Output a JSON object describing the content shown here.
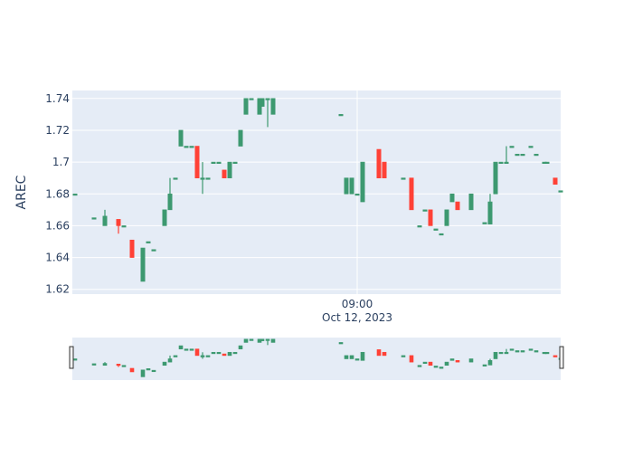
{
  "chart_data": {
    "type": "candlestick",
    "title": "",
    "xlabel": "",
    "ylabel": "AREC",
    "ylim": [
      1.617,
      1.745
    ],
    "y_ticks": [
      "1.62",
      "1.64",
      "1.66",
      "1.68",
      "1.7",
      "1.72",
      "1.74"
    ],
    "x_ticks": [
      {
        "x": 105,
        "line1": "09:00",
        "line2": "Oct 12, 2023"
      }
    ],
    "x_range": [
      0,
      180
    ],
    "grid": true,
    "range_slider": true,
    "colors": {
      "background": "#e5ecf6",
      "grid": "#ffffff",
      "increasing": "#3d9970",
      "decreasing": "#ff4136",
      "text": "#2a3f5f"
    },
    "candles": [
      {
        "x": 1,
        "open": 1.68,
        "high": 1.68,
        "low": 1.68,
        "close": 1.68
      },
      {
        "x": 8,
        "open": 1.665,
        "high": 1.665,
        "low": 1.665,
        "close": 1.665
      },
      {
        "x": 12,
        "open": 1.66,
        "high": 1.67,
        "low": 1.66,
        "close": 1.666
      },
      {
        "x": 17,
        "open": 1.664,
        "high": 1.664,
        "low": 1.655,
        "close": 1.66
      },
      {
        "x": 19,
        "open": 1.66,
        "high": 1.66,
        "low": 1.66,
        "close": 1.66
      },
      {
        "x": 22,
        "open": 1.651,
        "high": 1.651,
        "low": 1.64,
        "close": 1.64
      },
      {
        "x": 26,
        "open": 1.625,
        "high": 1.646,
        "low": 1.625,
        "close": 1.646
      },
      {
        "x": 28,
        "open": 1.65,
        "high": 1.65,
        "low": 1.65,
        "close": 1.65
      },
      {
        "x": 30,
        "open": 1.645,
        "high": 1.645,
        "low": 1.645,
        "close": 1.645
      },
      {
        "x": 34,
        "open": 1.66,
        "high": 1.67,
        "low": 1.66,
        "close": 1.67
      },
      {
        "x": 36,
        "open": 1.67,
        "high": 1.69,
        "low": 1.67,
        "close": 1.68
      },
      {
        "x": 38,
        "open": 1.69,
        "high": 1.69,
        "low": 1.69,
        "close": 1.69
      },
      {
        "x": 40,
        "open": 1.71,
        "high": 1.72,
        "low": 1.71,
        "close": 1.72
      },
      {
        "x": 42,
        "open": 1.71,
        "high": 1.71,
        "low": 1.71,
        "close": 1.71
      },
      {
        "x": 44,
        "open": 1.71,
        "high": 1.71,
        "low": 1.71,
        "close": 1.71
      },
      {
        "x": 46,
        "open": 1.71,
        "high": 1.71,
        "low": 1.69,
        "close": 1.69
      },
      {
        "x": 48,
        "open": 1.69,
        "high": 1.7,
        "low": 1.68,
        "close": 1.69
      },
      {
        "x": 50,
        "open": 1.69,
        "high": 1.69,
        "low": 1.69,
        "close": 1.69
      },
      {
        "x": 52,
        "open": 1.7,
        "high": 1.7,
        "low": 1.7,
        "close": 1.7
      },
      {
        "x": 54,
        "open": 1.7,
        "high": 1.7,
        "low": 1.7,
        "close": 1.7
      },
      {
        "x": 56,
        "open": 1.695,
        "high": 1.695,
        "low": 1.69,
        "close": 1.69
      },
      {
        "x": 58,
        "open": 1.69,
        "high": 1.7,
        "low": 1.69,
        "close": 1.7
      },
      {
        "x": 60,
        "open": 1.7,
        "high": 1.7,
        "low": 1.7,
        "close": 1.7
      },
      {
        "x": 62,
        "open": 1.71,
        "high": 1.72,
        "low": 1.71,
        "close": 1.72
      },
      {
        "x": 64,
        "open": 1.73,
        "high": 1.74,
        "low": 1.73,
        "close": 1.74
      },
      {
        "x": 66,
        "open": 1.74,
        "high": 1.74,
        "low": 1.74,
        "close": 1.74
      },
      {
        "x": 69,
        "open": 1.73,
        "high": 1.74,
        "low": 1.73,
        "close": 1.74
      },
      {
        "x": 70,
        "open": 1.735,
        "high": 1.74,
        "low": 1.735,
        "close": 1.74
      },
      {
        "x": 72,
        "open": 1.74,
        "high": 1.74,
        "low": 1.722,
        "close": 1.74
      },
      {
        "x": 74,
        "open": 1.73,
        "high": 1.74,
        "low": 1.73,
        "close": 1.74
      },
      {
        "x": 99,
        "open": 1.73,
        "high": 1.73,
        "low": 1.73,
        "close": 1.73
      },
      {
        "x": 101,
        "open": 1.68,
        "high": 1.69,
        "low": 1.68,
        "close": 1.69
      },
      {
        "x": 103,
        "open": 1.68,
        "high": 1.69,
        "low": 1.68,
        "close": 1.69
      },
      {
        "x": 105,
        "open": 1.68,
        "high": 1.68,
        "low": 1.68,
        "close": 1.68
      },
      {
        "x": 107,
        "open": 1.675,
        "high": 1.7,
        "low": 1.675,
        "close": 1.7
      },
      {
        "x": 113,
        "open": 1.708,
        "high": 1.708,
        "low": 1.69,
        "close": 1.69
      },
      {
        "x": 115,
        "open": 1.7,
        "high": 1.7,
        "low": 1.69,
        "close": 1.69
      },
      {
        "x": 122,
        "open": 1.69,
        "high": 1.69,
        "low": 1.69,
        "close": 1.69
      },
      {
        "x": 125,
        "open": 1.69,
        "high": 1.69,
        "low": 1.67,
        "close": 1.67
      },
      {
        "x": 128,
        "open": 1.66,
        "high": 1.66,
        "low": 1.66,
        "close": 1.66
      },
      {
        "x": 130,
        "open": 1.67,
        "high": 1.67,
        "low": 1.67,
        "close": 1.67
      },
      {
        "x": 132,
        "open": 1.67,
        "high": 1.67,
        "low": 1.66,
        "close": 1.66
      },
      {
        "x": 134,
        "open": 1.658,
        "high": 1.658,
        "low": 1.658,
        "close": 1.658
      },
      {
        "x": 136,
        "open": 1.655,
        "high": 1.655,
        "low": 1.655,
        "close": 1.655
      },
      {
        "x": 138,
        "open": 1.66,
        "high": 1.67,
        "low": 1.66,
        "close": 1.67
      },
      {
        "x": 140,
        "open": 1.675,
        "high": 1.68,
        "low": 1.675,
        "close": 1.68
      },
      {
        "x": 142,
        "open": 1.675,
        "high": 1.675,
        "low": 1.67,
        "close": 1.67
      },
      {
        "x": 147,
        "open": 1.67,
        "high": 1.68,
        "low": 1.67,
        "close": 1.68
      },
      {
        "x": 152,
        "open": 1.662,
        "high": 1.662,
        "low": 1.662,
        "close": 1.662
      },
      {
        "x": 154,
        "open": 1.661,
        "high": 1.68,
        "low": 1.661,
        "close": 1.675
      },
      {
        "x": 156,
        "open": 1.68,
        "high": 1.7,
        "low": 1.68,
        "close": 1.7
      },
      {
        "x": 158,
        "open": 1.7,
        "high": 1.7,
        "low": 1.7,
        "close": 1.7
      },
      {
        "x": 160,
        "open": 1.7,
        "high": 1.71,
        "low": 1.7,
        "close": 1.7
      },
      {
        "x": 162,
        "open": 1.71,
        "high": 1.71,
        "low": 1.71,
        "close": 1.71
      },
      {
        "x": 164,
        "open": 1.705,
        "high": 1.705,
        "low": 1.705,
        "close": 1.705
      },
      {
        "x": 166,
        "open": 1.705,
        "high": 1.705,
        "low": 1.705,
        "close": 1.705
      },
      {
        "x": 169,
        "open": 1.71,
        "high": 1.71,
        "low": 1.71,
        "close": 1.71
      },
      {
        "x": 171,
        "open": 1.705,
        "high": 1.705,
        "low": 1.705,
        "close": 1.705
      },
      {
        "x": 174,
        "open": 1.7,
        "high": 1.7,
        "low": 1.7,
        "close": 1.7
      },
      {
        "x": 175,
        "open": 1.7,
        "high": 1.7,
        "low": 1.7,
        "close": 1.7
      },
      {
        "x": 178,
        "open": 1.69,
        "high": 1.69,
        "low": 1.686,
        "close": 1.686
      },
      {
        "x": 180,
        "open": 1.682,
        "high": 1.682,
        "low": 1.682,
        "close": 1.682
      }
    ]
  }
}
